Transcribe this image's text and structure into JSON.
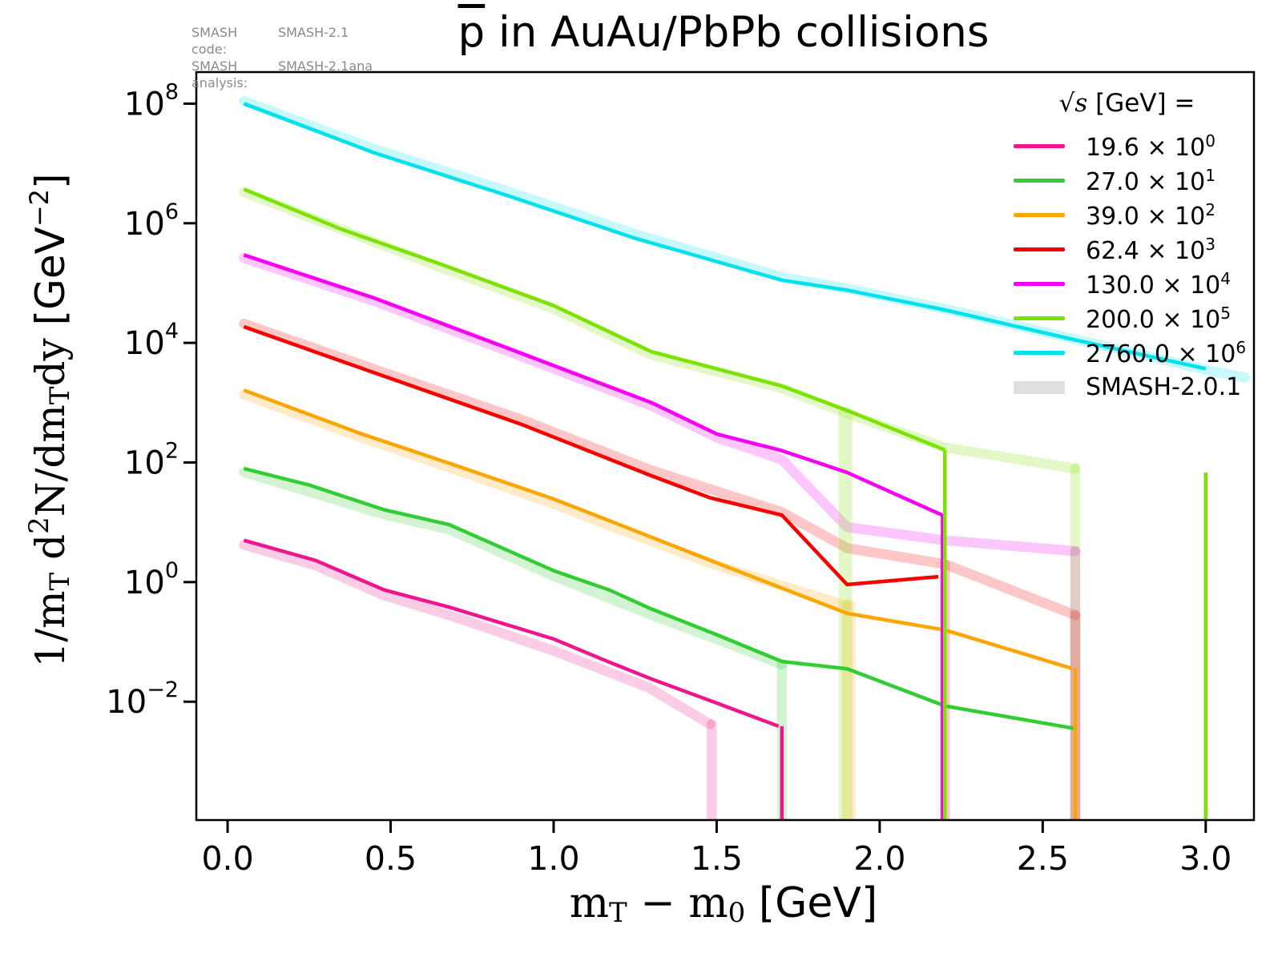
{
  "annotations": {
    "code_label": "SMASH code:",
    "code_value": "SMASH-2.1",
    "analysis_label": "SMASH analysis:",
    "analysis_value": "SMASH-2.1ana"
  },
  "title": {
    "particle": "p",
    "rest": " in AuAu/PbPb collisions"
  },
  "x_axis_label": {
    "m1": "m",
    "sub1": "T",
    "minus": " − ",
    "m2": "m",
    "sub2": "0",
    "unit": " [GeV]"
  },
  "y_axis_label": {
    "part1": "1/m",
    "sub1": "T",
    "part2": " d",
    "sup2": "2",
    "part3": "N/dm",
    "sub3": "T",
    "part4": "dy",
    "unit_open": "  [GeV",
    "unit_exp": "−2",
    "unit_close": "]"
  },
  "legend": {
    "title_sqrt": "√s",
    "title_rest": " [GeV] =",
    "band_label": "SMASH-2.0.1",
    "band_color": "#e0e0e0"
  },
  "chart_data": {
    "type": "line",
    "title": "pbar in AuAu/PbPb collisions",
    "xlabel": "mT - m0 [GeV]",
    "ylabel": "1/mT d2N/dmTdy [GeV-2]",
    "x_scale": "linear",
    "y_scale": "log",
    "xlim": [
      -0.096,
      3.148
    ],
    "ylim": [
      0.000105,
      337000000.0
    ],
    "x_ticks": [
      0.0,
      0.5,
      1.0,
      1.5,
      2.0,
      2.5,
      3.0
    ],
    "y_tick_exponents": [
      8,
      6,
      4,
      2,
      0,
      -2
    ],
    "grid": false,
    "legend_position": "upper right",
    "band_legend_label": "SMASH-2.0.1",
    "series": [
      {
        "name": "19.6 x 10^0",
        "sqrt_s": "19.6",
        "scale_exp": "0",
        "color": "#ed168e",
        "points": [
          [
            0.05,
            5.0
          ],
          [
            0.27,
            2.3
          ],
          [
            0.48,
            0.74
          ],
          [
            0.68,
            0.38
          ],
          [
            1.0,
            0.112
          ],
          [
            1.17,
            0.046
          ],
          [
            1.3,
            0.024
          ],
          [
            1.5,
            0.0095
          ],
          [
            1.69,
            0.0039
          ]
        ],
        "drops": [
          {
            "x": 1.7,
            "top": 0.0039
          }
        ],
        "band_points": [
          [
            0.05,
            4.2
          ],
          [
            0.27,
            1.9
          ],
          [
            0.48,
            0.6
          ],
          [
            0.68,
            0.28
          ],
          [
            1.0,
            0.071
          ],
          [
            1.29,
            0.0174
          ],
          [
            1.48,
            0.0042
          ]
        ],
        "band_drops": [
          {
            "x": 1.485,
            "top": 0.0042
          }
        ]
      },
      {
        "name": "27.0 x 10^1",
        "sqrt_s": "27.0",
        "scale_exp": "1",
        "color": "#32cd32",
        "points": [
          [
            0.05,
            79
          ],
          [
            0.25,
            42
          ],
          [
            0.48,
            16.2
          ],
          [
            0.68,
            9.1
          ],
          [
            1.0,
            1.55
          ],
          [
            1.17,
            0.74
          ],
          [
            1.3,
            0.355
          ],
          [
            1.5,
            0.132
          ],
          [
            1.7,
            0.047
          ],
          [
            1.9,
            0.0355
          ],
          [
            2.2,
            0.0085
          ],
          [
            2.6,
            0.00355
          ]
        ],
        "drops": [],
        "band_points": [
          [
            0.05,
            69
          ],
          [
            0.48,
            13.5
          ],
          [
            0.68,
            7.6
          ],
          [
            1.0,
            1.26
          ],
          [
            1.3,
            0.282
          ],
          [
            1.5,
            0.112
          ],
          [
            1.7,
            0.042
          ]
        ],
        "band_drops": [
          {
            "x": 1.7,
            "top": 0.042
          }
        ]
      },
      {
        "name": "39.0 x 10^2",
        "sqrt_s": "39.0",
        "scale_exp": "2",
        "color": "#ffa500",
        "points": [
          [
            0.05,
            1620
          ],
          [
            0.4,
            316
          ],
          [
            0.7,
            89
          ],
          [
            1.0,
            24.5
          ],
          [
            1.17,
            10.7
          ],
          [
            1.5,
            2.1
          ],
          [
            1.9,
            0.3
          ],
          [
            2.2,
            0.158
          ],
          [
            2.59,
            0.036
          ]
        ],
        "drops": [
          {
            "x": 2.6,
            "top": 0.036
          }
        ],
        "band_points": [
          [
            0.05,
            1380
          ],
          [
            0.4,
            275
          ],
          [
            0.7,
            76
          ],
          [
            1.0,
            20.4
          ],
          [
            1.17,
            8.9
          ],
          [
            1.5,
            1.9
          ],
          [
            1.9,
            0.4
          ]
        ],
        "band_drops": [
          {
            "x": 1.905,
            "top": 0.4,
            "w": 17
          }
        ]
      },
      {
        "name": "62.4 x 10^3",
        "sqrt_s": "62.4",
        "scale_exp": "3",
        "color": "#f80000",
        "points": [
          [
            0.05,
            18600
          ],
          [
            0.45,
            3160
          ],
          [
            0.9,
            437
          ],
          [
            1.3,
            60
          ],
          [
            1.48,
            25.7
          ],
          [
            1.7,
            13.2
          ],
          [
            1.9,
            0.91
          ],
          [
            2.18,
            1.23
          ]
        ],
        "drops": [],
        "band_points": [
          [
            0.05,
            20900
          ],
          [
            0.45,
            3630
          ],
          [
            0.9,
            525
          ],
          [
            1.3,
            74
          ],
          [
            1.7,
            14.8
          ],
          [
            1.9,
            3.7
          ],
          [
            2.2,
            2.0
          ],
          [
            2.6,
            0.28
          ]
        ],
        "band_drops": [
          {
            "x": 2.2,
            "top": 2.0
          },
          {
            "x": 2.6,
            "top": 0.28
          }
        ]
      },
      {
        "name": "130.0 x 10^4",
        "sqrt_s": "130.0",
        "scale_exp": "4",
        "color": "#f500f5",
        "points": [
          [
            0.05,
            295000
          ],
          [
            0.45,
            56000
          ],
          [
            0.85,
            8500
          ],
          [
            1.3,
            1000
          ],
          [
            1.5,
            300
          ],
          [
            1.7,
            158
          ],
          [
            1.9,
            68
          ],
          [
            2.2,
            12.6
          ]
        ],
        "drops": [
          {
            "x": 2.193,
            "top": 12.6
          }
        ],
        "band_points": [
          [
            0.05,
            263000
          ],
          [
            0.45,
            50000
          ],
          [
            0.85,
            7600
          ],
          [
            1.3,
            890
          ],
          [
            1.5,
            263
          ],
          [
            1.7,
            112
          ],
          [
            1.9,
            8.3
          ],
          [
            2.2,
            5.0
          ],
          [
            2.6,
            3.3
          ]
        ],
        "band_drops": [
          {
            "x": 2.6,
            "top": 3.3
          }
        ]
      },
      {
        "name": "200.0 x 10^5",
        "sqrt_s": "200.0",
        "scale_exp": "5",
        "color": "#7ce200",
        "points": [
          [
            0.05,
            3700000
          ],
          [
            0.35,
            790000
          ],
          [
            0.65,
            210000
          ],
          [
            1.0,
            42000
          ],
          [
            1.3,
            7100
          ],
          [
            1.7,
            1900
          ],
          [
            1.9,
            740
          ],
          [
            2.2,
            162
          ]
        ],
        "drops": [
          {
            "x": 2.2,
            "top": 162
          },
          {
            "x": 3.0,
            "top": 68
          }
        ],
        "band_points": [
          [
            0.05,
            3300000
          ],
          [
            0.65,
            186000
          ],
          [
            1.0,
            37000
          ],
          [
            1.3,
            6300
          ],
          [
            1.7,
            1740
          ],
          [
            1.9,
            660
          ],
          [
            2.2,
            178
          ],
          [
            2.6,
            79
          ]
        ],
        "band_drops": [
          {
            "x": 1.895,
            "top": 660,
            "w": 17
          },
          {
            "x": 2.6,
            "top": 79
          }
        ]
      },
      {
        "name": "2760.0 x 10^6",
        "sqrt_s": "2760.0",
        "scale_exp": "6",
        "color": "#00e1ee",
        "points": [
          [
            0.05,
            100000000
          ],
          [
            0.45,
            15000000
          ],
          [
            0.85,
            3000000
          ],
          [
            1.25,
            560000
          ],
          [
            1.7,
            112000
          ],
          [
            1.9,
            76000
          ],
          [
            2.2,
            35500
          ],
          [
            2.6,
            11200
          ],
          [
            3.0,
            3700
          ]
        ],
        "drops": [],
        "band_points": [
          [
            0.05,
            110000000
          ],
          [
            0.45,
            17400000
          ],
          [
            0.85,
            3550000
          ],
          [
            1.25,
            660000
          ],
          [
            1.7,
            126000
          ],
          [
            1.9,
            81000
          ],
          [
            2.2,
            37000
          ],
          [
            2.6,
            11500
          ],
          [
            3.0,
            3550
          ],
          [
            3.12,
            2630
          ]
        ],
        "band_drops": []
      }
    ]
  }
}
